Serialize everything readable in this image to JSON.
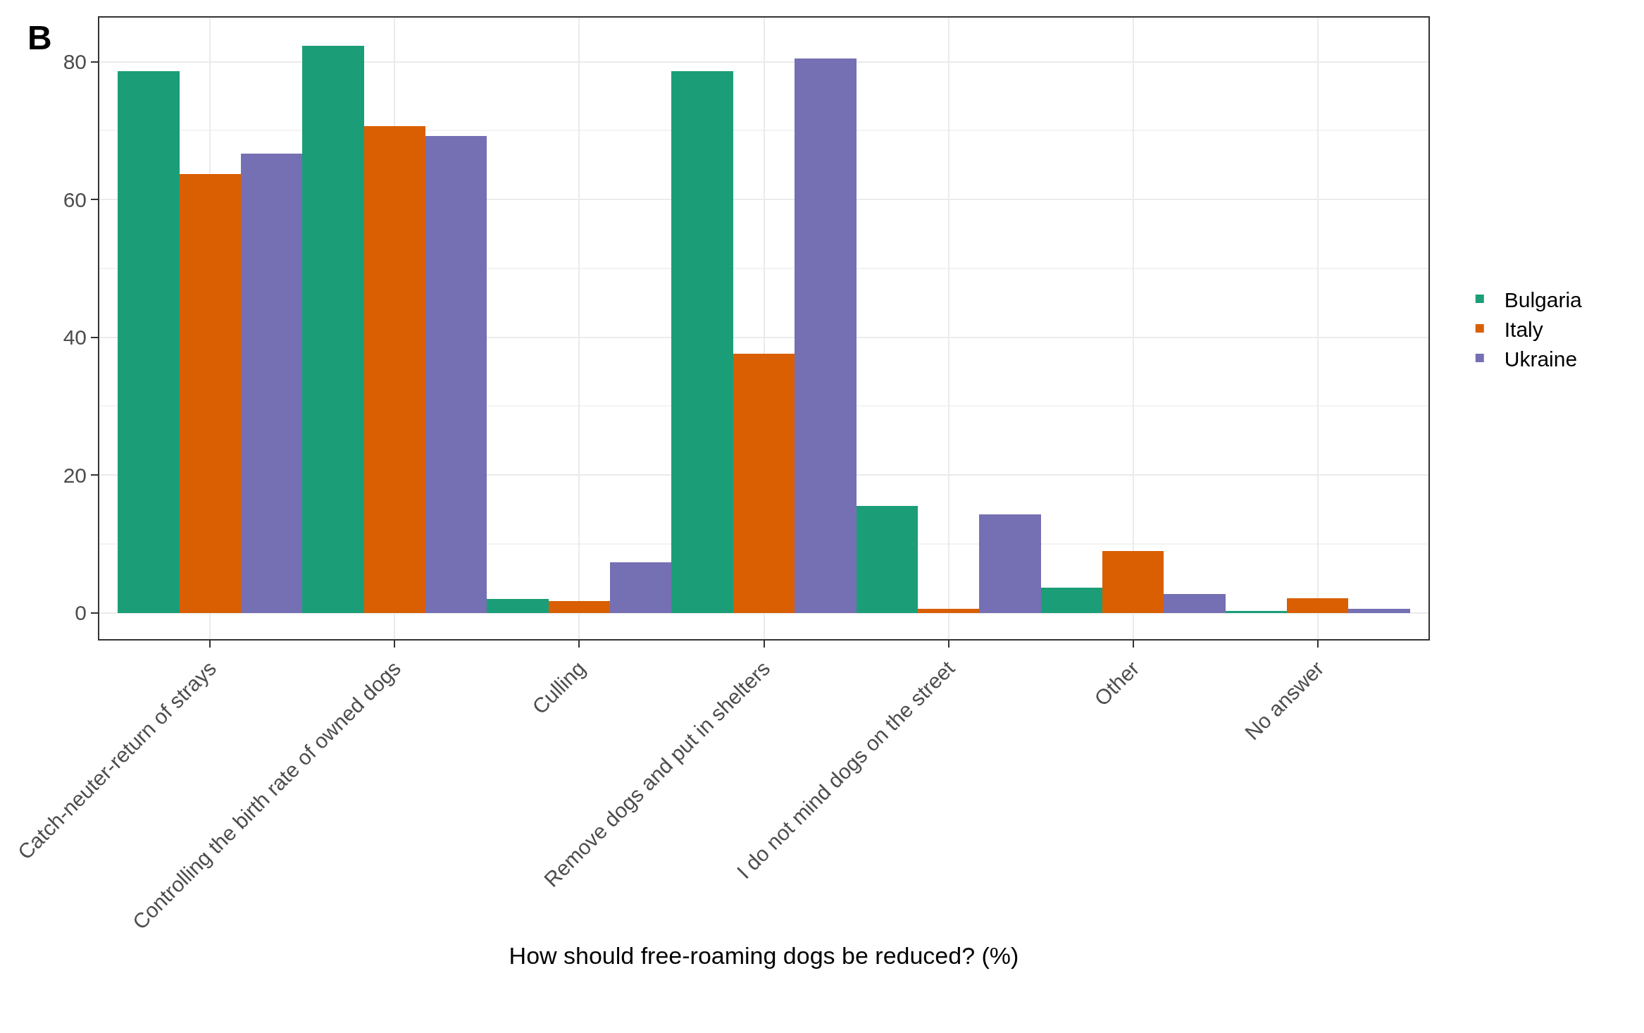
{
  "chart_data": {
    "type": "bar",
    "xlabel": "How should free-roaming dogs be reduced? (%)",
    "annotations": [
      "B"
    ],
    "categories": [
      "Catch-neuter-return of strays",
      "Controlling the birth rate of owned dogs",
      "Culling",
      "Remove dogs and put in shelters",
      "I do not mind dogs on the street",
      "Other",
      "No answer"
    ],
    "series": [
      {
        "name": "Bulgaria",
        "color": "#1b9e77",
        "values": [
          78.6,
          82.3,
          2.0,
          78.6,
          15.5,
          3.7,
          0.3
        ]
      },
      {
        "name": "Italy",
        "color": "#d95f02",
        "values": [
          63.7,
          70.7,
          1.7,
          37.6,
          0.6,
          9.0,
          2.1
        ]
      },
      {
        "name": "Ukraine",
        "color": "#7570b3",
        "values": [
          66.7,
          69.2,
          7.3,
          80.5,
          14.3,
          2.7,
          0.6
        ]
      }
    ],
    "ylim": [
      -3.8,
      86.4
    ],
    "yticks": [
      0,
      20,
      40,
      60,
      80
    ],
    "grid": true,
    "legend": "right"
  }
}
